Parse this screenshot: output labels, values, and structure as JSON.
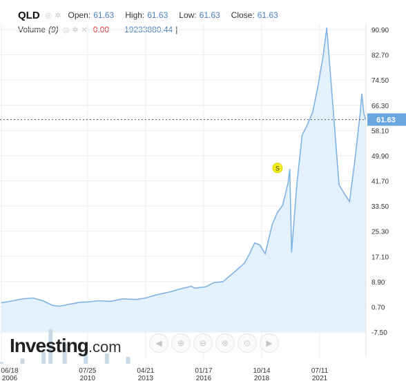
{
  "header": {
    "symbol": "QLD",
    "open_label": "Open:",
    "open_value": "61.63",
    "high_label": "High:",
    "high_value": "61.63",
    "low_label": "Low:",
    "low_value": "61.63",
    "close_label": "Close:",
    "close_value": "61.63",
    "volume_label": "Volume",
    "volume_period": "(9)",
    "volume_value": "0.00",
    "volume_last": "19233880.44",
    "cursor_mark": "|"
  },
  "logo": {
    "main": "Investing",
    "suffix": ".com"
  },
  "colors": {
    "line": "#7fb2e5",
    "area": "#e3f1fc",
    "price_tag": "#6aa7df",
    "marker": "#f4f01e",
    "grid": "#ececec"
  },
  "nav_icons": [
    "rewind-icon",
    "zoom-in-icon",
    "zoom-out-icon",
    "zoom-reset-icon",
    "zoom-fit-icon",
    "forward-icon"
  ],
  "chart_data": {
    "type": "area",
    "y_ticks": [
      "90.90",
      "82.70",
      "74.50",
      "66.30",
      "58.10",
      "49.90",
      "41.70",
      "33.50",
      "25.30",
      "17.10",
      "8.90",
      "0.70",
      "-7.50"
    ],
    "ylim": [
      -7.5,
      90.9
    ],
    "x_ticks": [
      {
        "top": "06/18",
        "bottom": "2006"
      },
      {
        "top": "07/25",
        "bottom": "2010"
      },
      {
        "top": "04/21",
        "bottom": "2013"
      },
      {
        "top": "01/17",
        "bottom": "2016"
      },
      {
        "top": "10/14",
        "bottom": "2018"
      },
      {
        "top": "07/11",
        "bottom": "2021"
      }
    ],
    "last_price": "61.63",
    "split_marker": {
      "label": "S",
      "date": "2019-07",
      "value": 45.9
    },
    "series": [
      {
        "x": [
          "2006-06",
          "2006-12",
          "2007-06",
          "2007-12",
          "2008-06",
          "2008-11",
          "2009-03",
          "2009-09",
          "2010-03",
          "2010-07",
          "2011-01",
          "2011-08",
          "2012-03",
          "2012-11",
          "2013-04",
          "2013-10",
          "2014-06",
          "2014-12",
          "2015-06",
          "2015-08",
          "2016-02",
          "2016-07",
          "2016-12",
          "2017-06",
          "2017-12",
          "2018-03",
          "2018-06",
          "2018-09",
          "2018-12",
          "2019-04",
          "2019-07",
          "2019-10",
          "2020-01",
          "2020-02",
          "2020-03",
          "2020-06",
          "2020-09",
          "2020-12",
          "2021-03",
          "2021-06",
          "2021-09",
          "2021-11",
          "2021-12",
          "2022-03",
          "2022-06",
          "2022-09",
          "2022-12",
          "2023-03",
          "2023-06",
          "2023-07",
          "2023-08",
          "2023-09"
        ],
        "values": [
          2.0,
          2.6,
          3.3,
          3.6,
          2.6,
          1.2,
          0.9,
          1.6,
          2.2,
          2.3,
          2.7,
          2.5,
          3.3,
          3.1,
          3.6,
          4.6,
          5.6,
          6.6,
          7.4,
          6.8,
          7.2,
          8.6,
          8.9,
          11.8,
          14.8,
          17.8,
          21.5,
          20.8,
          18.0,
          27.5,
          31.5,
          33.8,
          41.0,
          45.5,
          18.5,
          40.5,
          56.5,
          60.0,
          64.0,
          72.5,
          82.5,
          91.5,
          84.5,
          62.5,
          40.5,
          37.5,
          35.0,
          48.5,
          63.5,
          70.0,
          64.0,
          61.63
        ]
      }
    ],
    "volume": {
      "x": [
        "2006",
        "2007",
        "2008",
        "2008-10",
        "2009",
        "2010",
        "2011",
        "2012"
      ],
      "values": [
        0.05,
        0.15,
        0.35,
        1.0,
        0.6,
        0.35,
        0.3,
        0.2
      ]
    }
  }
}
